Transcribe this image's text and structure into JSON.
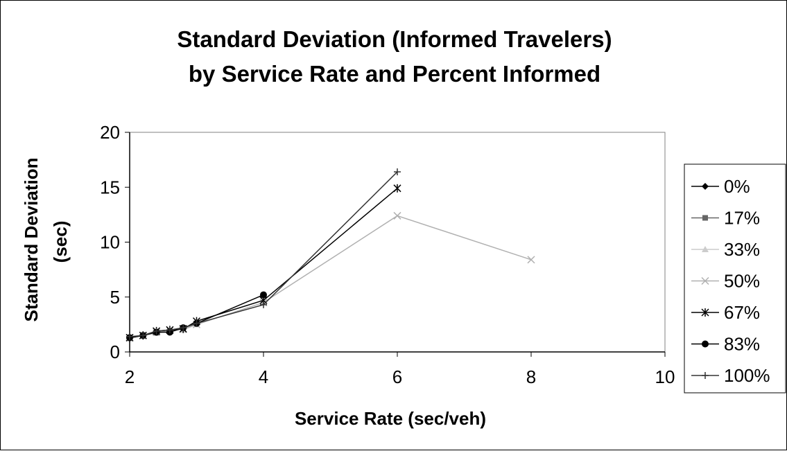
{
  "chart_data": {
    "type": "line",
    "title": [
      "Standard Deviation (Informed Travelers)",
      "by Service Rate and Percent Informed"
    ],
    "xlabel": "Service Rate (sec/veh)",
    "ylabel": [
      "Standard Deviation",
      "(sec)"
    ],
    "xlim": [
      2,
      10
    ],
    "ylim": [
      0,
      20
    ],
    "xticks": [
      2,
      4,
      6,
      8,
      10
    ],
    "yticks": [
      0,
      5,
      10,
      15,
      20
    ],
    "grid": false,
    "legend_position": "right",
    "series": [
      {
        "name": "0%",
        "color": "#000000",
        "marker": "diamond",
        "points": [
          [
            2,
            1.3
          ],
          [
            2.2,
            1.5
          ],
          [
            2.4,
            1.8
          ],
          [
            2.6,
            1.9
          ],
          [
            2.8,
            2.2
          ],
          [
            3,
            2.6
          ]
        ]
      },
      {
        "name": "17%",
        "color": "#666666",
        "marker": "square",
        "points": [
          [
            2,
            1.3
          ],
          [
            2.2,
            1.5
          ],
          [
            2.4,
            1.8
          ],
          [
            2.6,
            1.9
          ],
          [
            2.8,
            2.1
          ],
          [
            3,
            2.6
          ]
        ]
      },
      {
        "name": "33%",
        "color": "#cccccc",
        "marker": "triangle",
        "points": [
          [
            2,
            1.2
          ],
          [
            2.2,
            1.5
          ],
          [
            2.4,
            1.7
          ],
          [
            2.6,
            1.9
          ],
          [
            2.8,
            2.0
          ],
          [
            3,
            2.5
          ]
        ]
      },
      {
        "name": "50%",
        "color": "#b0b0b0",
        "marker": "x",
        "points": [
          [
            2,
            1.3
          ],
          [
            2.2,
            1.5
          ],
          [
            2.4,
            1.8
          ],
          [
            2.6,
            2.0
          ],
          [
            2.8,
            2.1
          ],
          [
            3,
            2.5
          ],
          [
            4,
            4.5
          ],
          [
            6,
            12.4
          ],
          [
            8,
            8.4
          ]
        ]
      },
      {
        "name": "67%",
        "color": "#000000",
        "marker": "star",
        "points": [
          [
            2,
            1.3
          ],
          [
            2.2,
            1.5
          ],
          [
            2.4,
            1.9
          ],
          [
            2.6,
            2.0
          ],
          [
            2.8,
            2.1
          ],
          [
            3,
            2.8
          ],
          [
            4,
            4.7
          ],
          [
            6,
            14.9
          ]
        ]
      },
      {
        "name": "83%",
        "color": "#000000",
        "marker": "circle",
        "points": [
          [
            2,
            1.3
          ],
          [
            2.2,
            1.5
          ],
          [
            2.4,
            1.8
          ],
          [
            2.6,
            1.8
          ],
          [
            2.8,
            2.2
          ],
          [
            3,
            2.6
          ],
          [
            4,
            5.2
          ]
        ]
      },
      {
        "name": "100%",
        "color": "#333333",
        "marker": "plus",
        "points": [
          [
            2,
            1.4
          ],
          [
            2.2,
            1.5
          ],
          [
            2.4,
            1.9
          ],
          [
            2.6,
            2.0
          ],
          [
            2.8,
            2.2
          ],
          [
            3,
            2.6
          ],
          [
            4,
            4.3
          ],
          [
            6,
            16.4
          ]
        ]
      }
    ]
  }
}
